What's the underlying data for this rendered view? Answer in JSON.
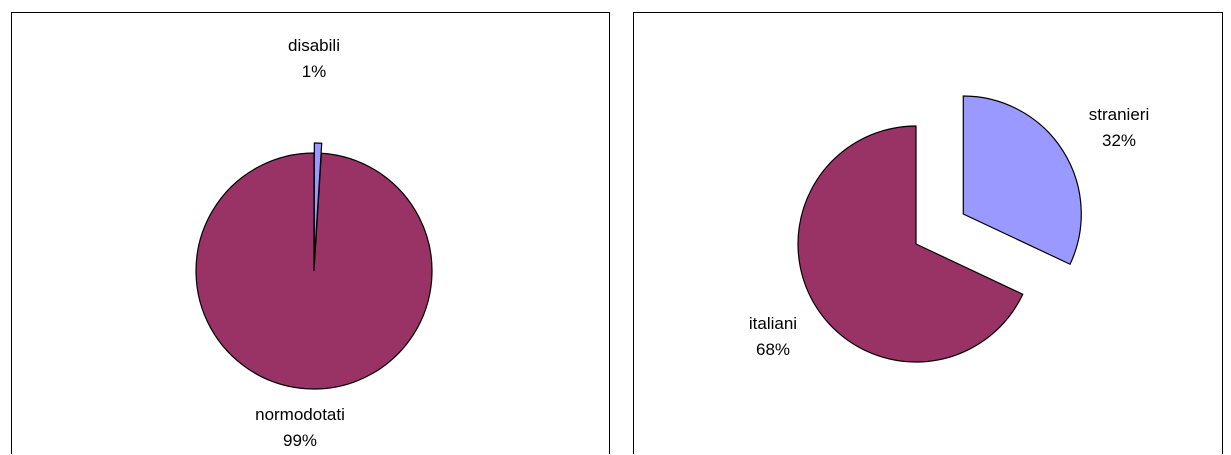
{
  "chart_data": [
    {
      "type": "pie",
      "title": "",
      "slices": [
        {
          "label": "disabili",
          "value_label": "1%",
          "value": 1,
          "color": "#9999FF",
          "exploded": true
        },
        {
          "label": "normodotati",
          "value_label": "99%",
          "value": 99,
          "color": "#993366",
          "exploded": false
        }
      ]
    },
    {
      "type": "pie",
      "title": "",
      "slices": [
        {
          "label": "stranieri",
          "value_label": "32%",
          "value": 32,
          "color": "#9999FF",
          "exploded": true
        },
        {
          "label": "italiani",
          "value_label": "68%",
          "value": 68,
          "color": "#993366",
          "exploded": false
        }
      ]
    }
  ]
}
